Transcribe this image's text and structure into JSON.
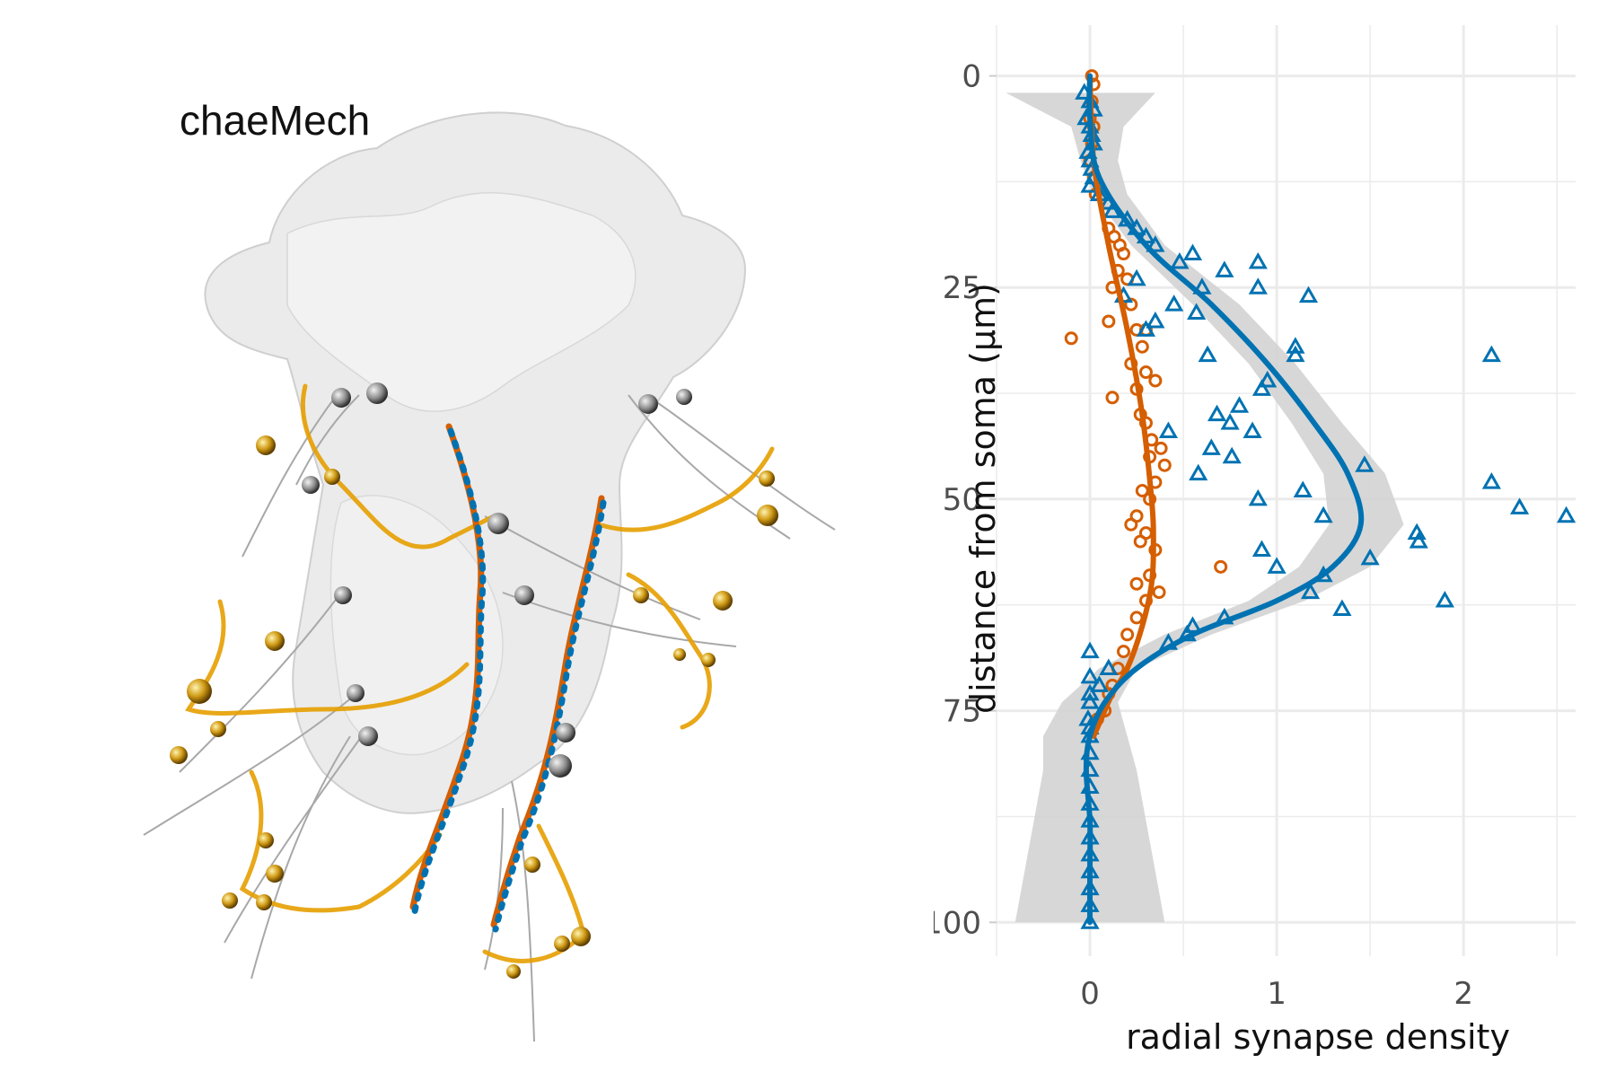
{
  "figure": {
    "render_title": "chaeMech",
    "colors": {
      "orange": "#D55E00",
      "blue": "#0072B2",
      "gold": "#E69F00",
      "gray_neuron": "#9a9a9a",
      "ribbon": "#d3d3d3",
      "grid": "#ebebeb"
    }
  },
  "chart_data": {
    "type": "scatter",
    "title": "",
    "xlabel": "radial synapse density",
    "ylabel": "distance from soma (µm)",
    "xlim": [
      -0.5,
      2.6
    ],
    "ylim": [
      104,
      -6
    ],
    "y_reversed": true,
    "grid": true,
    "x_ticks": [
      0,
      1,
      2
    ],
    "x_tick_labels": [
      "0",
      "1",
      "2"
    ],
    "y_ticks": [
      0,
      25,
      50,
      75,
      100
    ],
    "y_tick_labels": [
      "0",
      "25",
      "50",
      "75",
      "100"
    ],
    "series": [
      {
        "marker": "circle-open",
        "color": "#D55E00",
        "points": [
          [
            0.01,
            0
          ],
          [
            0.02,
            1
          ],
          [
            0.01,
            3
          ],
          [
            0.0,
            5
          ],
          [
            0.02,
            6
          ],
          [
            0.01,
            8
          ],
          [
            0.0,
            10
          ],
          [
            0.02,
            12
          ],
          [
            0.03,
            14
          ],
          [
            0.1,
            18
          ],
          [
            0.13,
            19
          ],
          [
            0.16,
            20
          ],
          [
            0.18,
            21
          ],
          [
            0.15,
            23
          ],
          [
            0.2,
            24
          ],
          [
            0.12,
            25
          ],
          [
            0.22,
            27
          ],
          [
            0.1,
            29
          ],
          [
            0.25,
            30
          ],
          [
            0.3,
            30
          ],
          [
            -0.1,
            31
          ],
          [
            0.28,
            32
          ],
          [
            0.22,
            34
          ],
          [
            0.3,
            35
          ],
          [
            0.35,
            36
          ],
          [
            0.25,
            37
          ],
          [
            0.12,
            38
          ],
          [
            0.27,
            40
          ],
          [
            0.3,
            41
          ],
          [
            0.33,
            43
          ],
          [
            0.38,
            44
          ],
          [
            0.32,
            45
          ],
          [
            0.4,
            46
          ],
          [
            0.35,
            48
          ],
          [
            0.28,
            49
          ],
          [
            0.32,
            50
          ],
          [
            0.25,
            52
          ],
          [
            0.22,
            53
          ],
          [
            0.3,
            54
          ],
          [
            0.27,
            55
          ],
          [
            0.35,
            56
          ],
          [
            0.7,
            58
          ],
          [
            0.32,
            59
          ],
          [
            0.25,
            60
          ],
          [
            0.37,
            61
          ],
          [
            0.3,
            62
          ],
          [
            0.25,
            64
          ],
          [
            0.2,
            66
          ],
          [
            0.18,
            68
          ],
          [
            0.15,
            70
          ],
          [
            0.12,
            72
          ],
          [
            0.1,
            73
          ],
          [
            0.08,
            75
          ],
          [
            0.04,
            76
          ]
        ]
      },
      {
        "marker": "triangle-open",
        "color": "#0072B2",
        "points": [
          [
            -0.03,
            2
          ],
          [
            0.0,
            3
          ],
          [
            0.02,
            4
          ],
          [
            -0.02,
            5
          ],
          [
            0.0,
            6
          ],
          [
            0.01,
            7
          ],
          [
            0.02,
            8
          ],
          [
            -0.01,
            9
          ],
          [
            0.0,
            10
          ],
          [
            0.01,
            11
          ],
          [
            0.02,
            12
          ],
          [
            0.0,
            13
          ],
          [
            0.05,
            14
          ],
          [
            0.1,
            15
          ],
          [
            0.12,
            16
          ],
          [
            0.2,
            17
          ],
          [
            0.25,
            18
          ],
          [
            0.3,
            19
          ],
          [
            0.35,
            20
          ],
          [
            0.55,
            21
          ],
          [
            0.48,
            22
          ],
          [
            0.9,
            22
          ],
          [
            0.72,
            23
          ],
          [
            0.25,
            24
          ],
          [
            0.6,
            25
          ],
          [
            0.9,
            25
          ],
          [
            0.18,
            26
          ],
          [
            0.45,
            27
          ],
          [
            1.17,
            26
          ],
          [
            0.57,
            28
          ],
          [
            0.35,
            29
          ],
          [
            0.3,
            30
          ],
          [
            1.1,
            32
          ],
          [
            0.63,
            33
          ],
          [
            1.1,
            33
          ],
          [
            2.15,
            33
          ],
          [
            0.95,
            36
          ],
          [
            0.92,
            37
          ],
          [
            0.68,
            40
          ],
          [
            0.8,
            39
          ],
          [
            0.75,
            41
          ],
          [
            0.42,
            42
          ],
          [
            0.87,
            42
          ],
          [
            0.65,
            44
          ],
          [
            0.76,
            45
          ],
          [
            0.58,
            47
          ],
          [
            1.47,
            46
          ],
          [
            2.15,
            48
          ],
          [
            1.14,
            49
          ],
          [
            0.9,
            50
          ],
          [
            2.3,
            51
          ],
          [
            1.25,
            52
          ],
          [
            2.55,
            52
          ],
          [
            1.75,
            54
          ],
          [
            1.76,
            55
          ],
          [
            0.92,
            56
          ],
          [
            1.5,
            57
          ],
          [
            1.0,
            58
          ],
          [
            1.25,
            59
          ],
          [
            1.18,
            61
          ],
          [
            1.35,
            63
          ],
          [
            1.9,
            62
          ],
          [
            0.72,
            64
          ],
          [
            0.55,
            65
          ],
          [
            0.52,
            66
          ],
          [
            0.42,
            67
          ],
          [
            0.0,
            68
          ],
          [
            0.1,
            70
          ],
          [
            0.0,
            71
          ],
          [
            0.05,
            72
          ],
          [
            0.0,
            73
          ],
          [
            0.0,
            74
          ],
          [
            -0.01,
            76
          ],
          [
            0.0,
            77
          ],
          [
            0.0,
            78
          ],
          [
            0.0,
            80
          ],
          [
            0.0,
            82
          ],
          [
            0.0,
            84
          ],
          [
            0.0,
            86
          ],
          [
            0.0,
            88
          ],
          [
            0.0,
            90
          ],
          [
            0.0,
            92
          ],
          [
            0.0,
            94
          ],
          [
            0.0,
            96
          ],
          [
            0.0,
            98
          ],
          [
            0.0,
            100
          ]
        ]
      }
    ],
    "smooth_lines": [
      {
        "color": "#D55E00",
        "x": [
          0.0,
          0.02,
          0.1,
          0.2,
          0.28,
          0.33,
          0.34,
          0.33,
          0.28,
          0.2,
          0.12,
          0.06,
          0.02
        ],
        "y": [
          0,
          10,
          20,
          30,
          40,
          50,
          55,
          60,
          65,
          70,
          73,
          76,
          78
        ]
      },
      {
        "color": "#0072B2",
        "x": [
          0.0,
          0.0,
          0.05,
          0.3,
          0.65,
          0.95,
          1.2,
          1.38,
          1.45,
          1.3,
          1.0,
          0.55,
          0.25,
          0.08,
          0.0,
          -0.02,
          0.0,
          0.0,
          0.0
        ],
        "y": [
          0,
          5,
          12,
          20,
          27,
          34,
          41,
          47,
          53,
          58,
          62,
          66,
          70,
          74,
          78,
          82,
          88,
          94,
          100
        ]
      }
    ],
    "confidence_band": {
      "y": [
        2,
        6,
        10,
        14,
        20,
        27,
        34,
        41,
        47,
        53,
        58,
        62,
        66,
        70,
        74,
        78,
        82,
        88,
        94,
        100
      ],
      "lower": [
        -0.45,
        -0.1,
        -0.05,
        0.02,
        0.22,
        0.55,
        0.85,
        1.08,
        1.25,
        1.28,
        1.12,
        0.85,
        0.4,
        0.05,
        -0.15,
        -0.25,
        -0.25,
        -0.3,
        -0.35,
        -0.4
      ],
      "upper": [
        0.35,
        0.18,
        0.15,
        0.2,
        0.4,
        0.8,
        1.1,
        1.35,
        1.58,
        1.68,
        1.5,
        1.15,
        0.65,
        0.25,
        0.15,
        0.2,
        0.25,
        0.3,
        0.35,
        0.4
      ]
    }
  }
}
